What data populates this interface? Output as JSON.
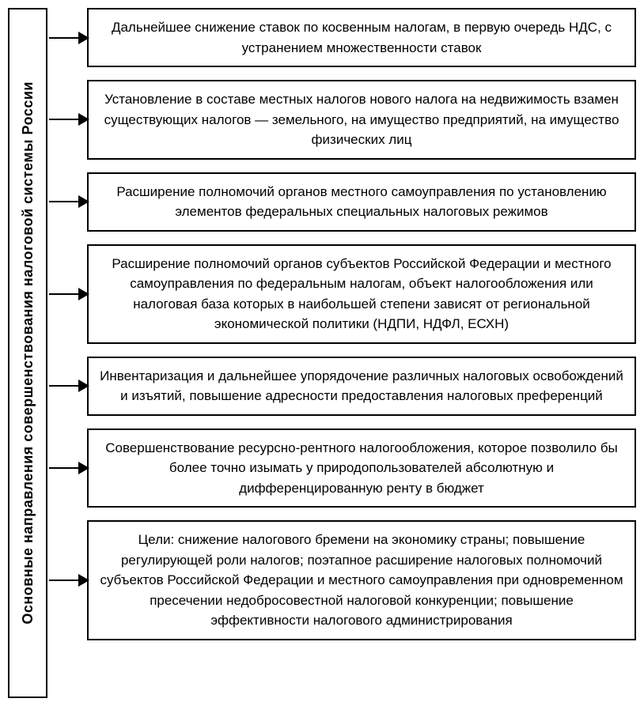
{
  "diagram": {
    "type": "flowchart",
    "sidebar_label": "Основные направления совершенствования налоговой системы России",
    "border_color": "#000000",
    "border_width": 2.5,
    "background_color": "#ffffff",
    "font_size": 17,
    "sidebar_font_size": 18,
    "arrow_head_size": 14,
    "boxes": [
      {
        "text": "Дальнейшее снижение ставок по косвенным налогам, в первую очередь НДС, с устранением множественности ставок"
      },
      {
        "text": "Установление в составе местных налогов нового налога на недвижимость взамен существующих налогов — земельного, на имущество предприятий, на имущество физических лиц"
      },
      {
        "text": "Расширение полномочий органов местного самоуправления по установлению элементов федеральных специальных налоговых режимов"
      },
      {
        "text": "Расширение полномочий органов субъектов Российской Федерации и местного самоуправления по федеральным налогам, объект налогообложения или налоговая база которых в наибольшей степени зависят от региональной экономической политики (НДПИ, НДФЛ, ЕСХН)"
      },
      {
        "text": "Инвентаризация и дальнейшее упорядочение различных налоговых освобождений и изъятий, повышение адресности предоставления налоговых преференций"
      },
      {
        "text": "Совершенствование ресурсно-рентного налогообложения, которое позволило бы более точно изымать у природопользователей абсолютную и дифференцированную ренту в бюджет"
      },
      {
        "text": "Цели: снижение налогового бремени на экономику страны; повышение регулирующей роли налогов; поэтапное расширение налоговых полномочий субъектов Российской Федерации и местного самоуправления при одновременном пресечении недобросовестной налоговой конкуренции; повышение эффективности налогового администрирования"
      }
    ]
  }
}
